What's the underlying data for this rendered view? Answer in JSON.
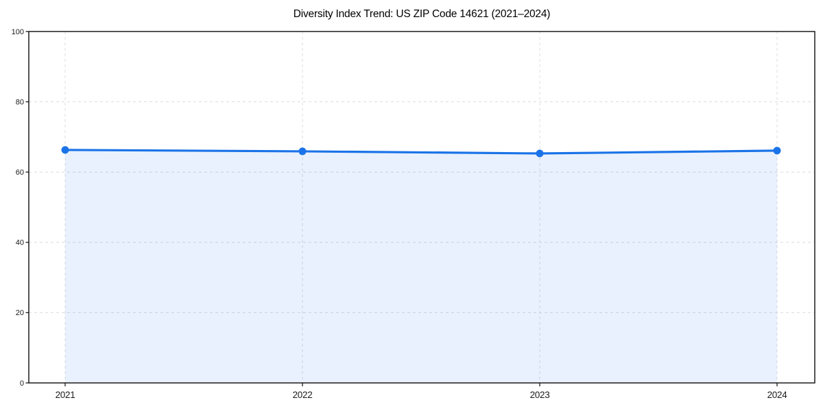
{
  "page": {
    "background": "#ffffff"
  },
  "chart_data": {
    "type": "area",
    "title": "Diversity Index Trend: US ZIP Code 14621 (2021–2024)",
    "categories": [
      "2021",
      "2022",
      "2023",
      "2024"
    ],
    "series": [
      {
        "name": "Diversity Index",
        "values": [
          66.3,
          65.9,
          65.3,
          66.1
        ]
      }
    ],
    "xlabel": "",
    "ylabel": "",
    "ylim": [
      0,
      100
    ],
    "yticks": [
      0,
      20,
      40,
      60,
      80,
      100
    ],
    "grid": true,
    "grid_style": "dashed",
    "legend": "none",
    "colors": {
      "line": "#1a73e8",
      "marker": "#1a73e8",
      "fill": "rgba(26,115,232,0.10)",
      "gridline": "#dcdcdc",
      "axis": "#1a1a1a",
      "tick_label": "#1a1a1a",
      "title": "#000000"
    }
  }
}
